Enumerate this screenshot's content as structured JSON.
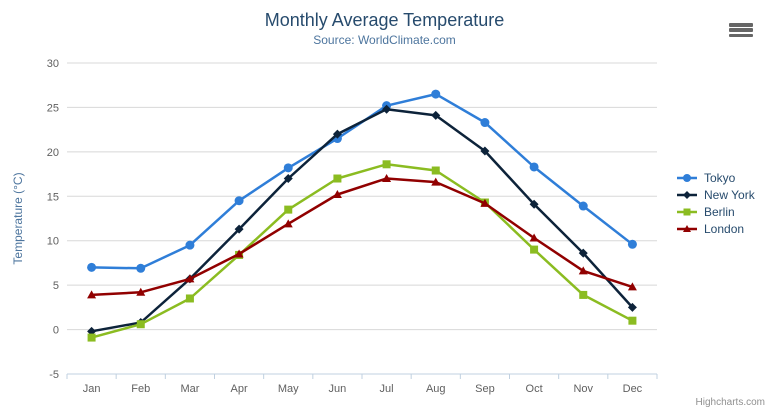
{
  "chart_data": {
    "type": "line",
    "title": "Monthly Average Temperature",
    "subtitle": "Source: WorldClimate.com",
    "xlabel": "",
    "ylabel": "Temperature (°C)",
    "ylim": [
      -5,
      30
    ],
    "ytick_step": 5,
    "grid": true,
    "legend_position": "right",
    "categories": [
      "Jan",
      "Feb",
      "Mar",
      "Apr",
      "May",
      "Jun",
      "Jul",
      "Aug",
      "Sep",
      "Oct",
      "Nov",
      "Dec"
    ],
    "series": [
      {
        "name": "Tokyo",
        "marker": "circle",
        "color": "#2f7ed8",
        "values": [
          7.0,
          6.9,
          9.5,
          14.5,
          18.2,
          21.5,
          25.2,
          26.5,
          23.3,
          18.3,
          13.9,
          9.6
        ]
      },
      {
        "name": "New York",
        "marker": "diamond",
        "color": "#0d233a",
        "values": [
          -0.2,
          0.8,
          5.7,
          11.3,
          17.0,
          22.0,
          24.8,
          24.1,
          20.1,
          14.1,
          8.6,
          2.5
        ]
      },
      {
        "name": "Berlin",
        "marker": "square",
        "color": "#8bbc21",
        "values": [
          -0.9,
          0.6,
          3.5,
          8.4,
          13.5,
          17.0,
          18.6,
          17.9,
          14.3,
          9.0,
          3.9,
          1.0
        ]
      },
      {
        "name": "London",
        "marker": "triangle",
        "color": "#910000",
        "values": [
          3.9,
          4.2,
          5.7,
          8.5,
          11.9,
          15.2,
          17.0,
          16.6,
          14.2,
          10.3,
          6.6,
          4.8
        ]
      }
    ],
    "credits": "Highcharts.com",
    "colors": {
      "background": "#ffffff",
      "title": "#274b6d",
      "subtitle": "#4d759e",
      "axis_title": "#4d759e",
      "axis_labels": "#606060",
      "grid": "#d8d8d8",
      "axis_line": "#c0d0e0",
      "legend_text": "#274b6d",
      "credits": "#909090",
      "menu_icon": "#666666"
    },
    "icons": {
      "menu": "hamburger-icon"
    }
  }
}
